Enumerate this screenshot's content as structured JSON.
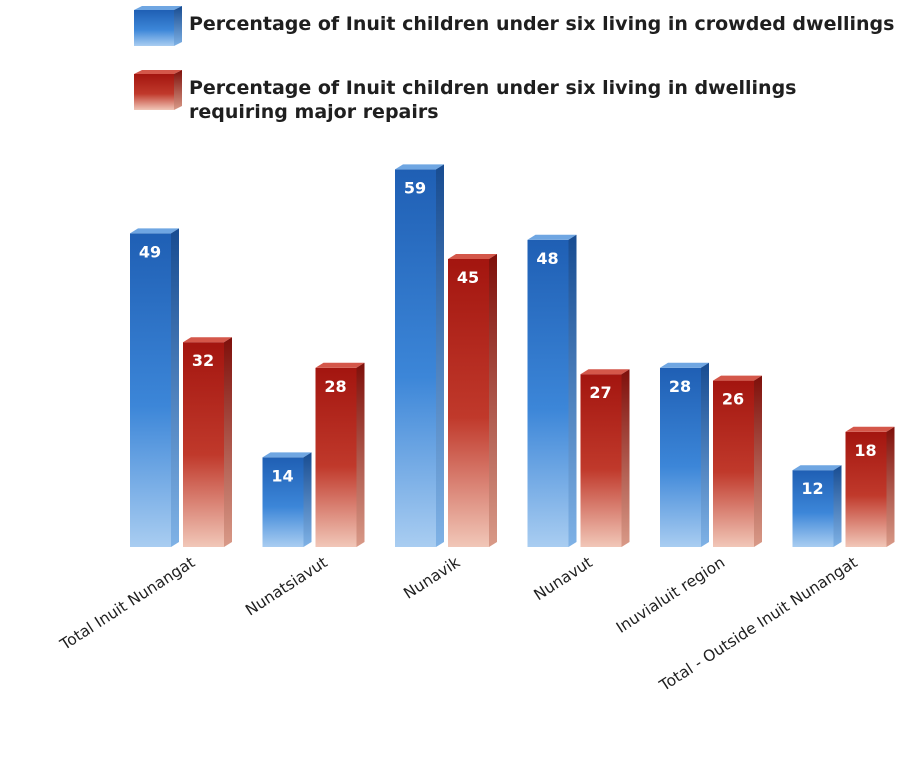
{
  "chart_data": {
    "type": "bar",
    "title": "",
    "xlabel": "",
    "ylabel": "",
    "categories": [
      "Total Inuit Nunangat",
      "Nunatsiavut",
      "Nunavik",
      "Nunavut",
      "Inuvialuit region",
      "Total - Outside Inuit Nunangat"
    ],
    "series": [
      {
        "name": "Percentage of Inuit children under six living in crowded dwellings",
        "legend_lines": [
          "Percentage of Inuit children under six living in crowded dwellings"
        ],
        "values": [
          49,
          14,
          59,
          48,
          28,
          12
        ],
        "color": "#2f73c8"
      },
      {
        "name": "Percentage of Inuit children under six living in dwellings requiring major repairs",
        "legend_lines": [
          "Percentage of Inuit children under six living in dwellings",
          "requiring major repairs"
        ],
        "values": [
          32,
          28,
          45,
          27,
          26,
          18
        ],
        "color": "#b8201a"
      }
    ],
    "ylim": [
      0,
      60
    ],
    "grid": false,
    "legend_position": "top"
  }
}
